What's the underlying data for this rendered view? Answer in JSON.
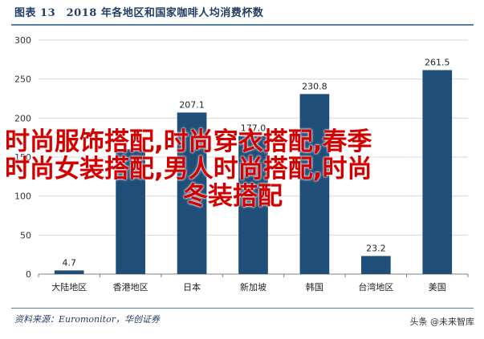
{
  "header": {
    "title": "图表 13　2018 年各地区和国家咖啡人均消费杯数"
  },
  "chart_data": {
    "type": "bar",
    "categories": [
      "大陆地区",
      "香港地区",
      "日本",
      "新加坡",
      "韩国",
      "台湾地区",
      "美国"
    ],
    "values": [
      4.7,
      160.0,
      207.1,
      177.0,
      230.8,
      23.2,
      261.5
    ],
    "value_labels": [
      "4.7",
      "",
      "207.1",
      "177.0",
      "230.8",
      "23.2",
      "261.5"
    ],
    "ylim": [
      0,
      300
    ],
    "yticks": [
      "0",
      "50",
      "100",
      "150",
      "200",
      "250",
      "300"
    ],
    "grid": true,
    "bar_color": "#1f4e79",
    "legend": "none"
  },
  "watermark": {
    "line1": "时尚服饰搭配,时尚穿衣搭配,春季",
    "line2": "时尚女装搭配,男人时尚搭配,时尚",
    "line3": "冬装搭配",
    "color": "#d40000"
  },
  "footer": {
    "source": "资料来源：Euromonitor，华创证券",
    "brand_prefix": "头条",
    "brand_name": "@未来智库"
  }
}
